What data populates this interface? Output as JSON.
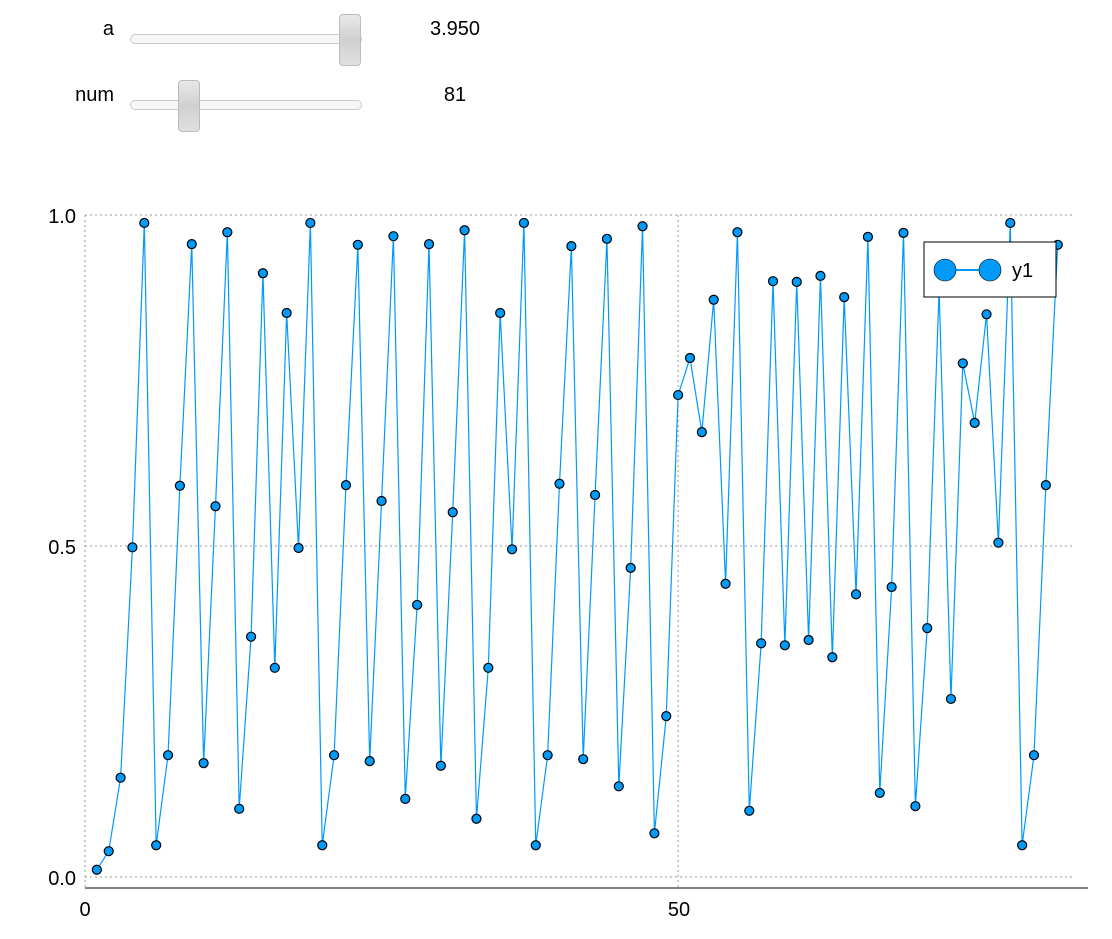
{
  "controls": {
    "a": {
      "label": "a",
      "value": "3.950",
      "fraction": 0.95
    },
    "num": {
      "label": "num",
      "value": "81",
      "fraction": 0.25
    }
  },
  "chart_data": {
    "type": "line",
    "markers": true,
    "x_start": 1,
    "xlim": [
      0,
      84.3
    ],
    "ylim": [
      0,
      1
    ],
    "xticks": [
      "0",
      "50"
    ],
    "yticks": [
      "0.0",
      "0.5",
      "1.0"
    ],
    "grid": true,
    "legend_position": "top-right",
    "series": [
      {
        "name": "y1",
        "color": "#009af9",
        "values": [
          0.011,
          0.039,
          0.15,
          0.498,
          0.988,
          0.048,
          0.184,
          0.591,
          0.956,
          0.172,
          0.56,
          0.974,
          0.103,
          0.363,
          0.912,
          0.316,
          0.852,
          0.497,
          0.988,
          0.048,
          0.184,
          0.592,
          0.955,
          0.175,
          0.568,
          0.968,
          0.118,
          0.411,
          0.956,
          0.168,
          0.551,
          0.977,
          0.088,
          0.316,
          0.852,
          0.495,
          0.988,
          0.048,
          0.184,
          0.594,
          0.953,
          0.178,
          0.577,
          0.964,
          0.137,
          0.467,
          0.983,
          0.066,
          0.243,
          0.728,
          0.784,
          0.672,
          0.872,
          0.443,
          0.974,
          0.1,
          0.353,
          0.9,
          0.35,
          0.899,
          0.358,
          0.908,
          0.332,
          0.876,
          0.427,
          0.967,
          0.127,
          0.438,
          0.973,
          0.107,
          0.376,
          0.887,
          0.269,
          0.776,
          0.686,
          0.85,
          0.505,
          0.988,
          0.048,
          0.184,
          0.592,
          0.955
        ]
      }
    ]
  }
}
